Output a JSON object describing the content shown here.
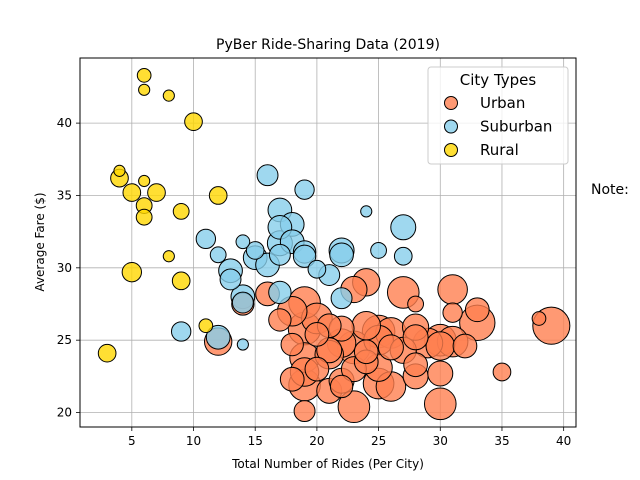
{
  "chart_data": {
    "type": "scatter",
    "title": "PyBer Ride-Sharing Data (2019)",
    "xlabel": "Total Number of Rides (Per City)",
    "ylabel": "Average Fare ($)",
    "xlim": [
      0.8,
      41.0
    ],
    "ylim": [
      19.0,
      44.5
    ],
    "xticks": [
      5,
      10,
      15,
      20,
      25,
      30,
      35,
      40
    ],
    "yticks": [
      20,
      25,
      30,
      35,
      40
    ],
    "grid": true,
    "legend": {
      "title": "City Types",
      "position": "top-right"
    },
    "note": "Note:",
    "series": [
      {
        "name": "Urban",
        "color": "#ff7f50",
        "points": [
          [
            39,
            26.0,
            22
          ],
          [
            33,
            26.2,
            20
          ],
          [
            31,
            28.5,
            14
          ],
          [
            30,
            25.0,
            16
          ],
          [
            27,
            28.3,
            16
          ],
          [
            26,
            25.5,
            15
          ],
          [
            25,
            25.6,
            17
          ],
          [
            25,
            25.0,
            14
          ],
          [
            24,
            26.0,
            13
          ],
          [
            24,
            29.0,
            12
          ],
          [
            23,
            28.5,
            11
          ],
          [
            23,
            24.5,
            17
          ],
          [
            22,
            25.8,
            10
          ],
          [
            22,
            24.8,
            13
          ],
          [
            21,
            26.0,
            9
          ],
          [
            21,
            24.0,
            13
          ],
          [
            20,
            26.5,
            15
          ],
          [
            19,
            27.6,
            16
          ],
          [
            19,
            25.8,
            17
          ],
          [
            18,
            27.0,
            14
          ],
          [
            18,
            24.7,
            8
          ],
          [
            19,
            23.8,
            14
          ],
          [
            19,
            21.9,
            16
          ],
          [
            19,
            22.8,
            13
          ],
          [
            18,
            22.3,
            9
          ],
          [
            19,
            20.1,
            7
          ],
          [
            21,
            21.5,
            10
          ],
          [
            22,
            22.2,
            10
          ],
          [
            22,
            21.8,
            8
          ],
          [
            23,
            20.4,
            16
          ],
          [
            24,
            23.5,
            9
          ],
          [
            25,
            22.0,
            15
          ],
          [
            25,
            23.1,
            12
          ],
          [
            26,
            21.8,
            14
          ],
          [
            26,
            24.5,
            10
          ],
          [
            27,
            24.3,
            11
          ],
          [
            28,
            25.9,
            11
          ],
          [
            28,
            25.2,
            10
          ],
          [
            28,
            23.3,
            9
          ],
          [
            28,
            22.5,
            10
          ],
          [
            29,
            24.8,
            14
          ],
          [
            30,
            24.6,
            13
          ],
          [
            30,
            22.7,
            10
          ],
          [
            30,
            20.6,
            16
          ],
          [
            31,
            24.9,
            15
          ],
          [
            31,
            26.9,
            6
          ],
          [
            33,
            27.1,
            9
          ],
          [
            35,
            22.8,
            5
          ],
          [
            38,
            26.5,
            3
          ],
          [
            28,
            27.5,
            4
          ],
          [
            16,
            28.2,
            9
          ],
          [
            17,
            26.4,
            8
          ],
          [
            14,
            27.5,
            8
          ],
          [
            12,
            24.9,
            12
          ],
          [
            20,
            23.0,
            9
          ],
          [
            21,
            24.3,
            10
          ],
          [
            24,
            24.2,
            9
          ],
          [
            32,
            24.6,
            9
          ],
          [
            23,
            23.0,
            10
          ],
          [
            20,
            25.4,
            9
          ]
        ]
      },
      {
        "name": "Suburban",
        "color": "#87ceeb",
        "points": [
          [
            27,
            32.8,
            10
          ],
          [
            16,
            36.4,
            7
          ],
          [
            19,
            35.4,
            6
          ],
          [
            17,
            34.0,
            9
          ],
          [
            18,
            33.0,
            9
          ],
          [
            17,
            32.8,
            9
          ],
          [
            15,
            31.2,
            5
          ],
          [
            17,
            31.7,
            10
          ],
          [
            18,
            31.8,
            9
          ],
          [
            19,
            31.1,
            8
          ],
          [
            19,
            30.8,
            8
          ],
          [
            17,
            30.9,
            7
          ],
          [
            15,
            30.7,
            9
          ],
          [
            16,
            30.2,
            9
          ],
          [
            13,
            29.8,
            9
          ],
          [
            13,
            29.2,
            7
          ],
          [
            11,
            32.0,
            6
          ],
          [
            12,
            30.9,
            4
          ],
          [
            14,
            31.8,
            3
          ],
          [
            14,
            28.0,
            9
          ],
          [
            14,
            27.6,
            7
          ],
          [
            17,
            28.3,
            8
          ],
          [
            21,
            29.5,
            7
          ],
          [
            22,
            30.9,
            9
          ],
          [
            22,
            31.2,
            10
          ],
          [
            22,
            27.9,
            7
          ],
          [
            20,
            29.9,
            5
          ],
          [
            25,
            31.2,
            4
          ],
          [
            27,
            30.8,
            5
          ],
          [
            24,
            33.9,
            2
          ],
          [
            9,
            25.6,
            6
          ],
          [
            12,
            25.2,
            9
          ],
          [
            14,
            24.7,
            2
          ]
        ]
      },
      {
        "name": "Rural",
        "color": "#ffd700",
        "points": [
          [
            6,
            43.3,
            3
          ],
          [
            6,
            42.3,
            2
          ],
          [
            8,
            41.9,
            2
          ],
          [
            10,
            40.1,
            5
          ],
          [
            4,
            36.7,
            2
          ],
          [
            4,
            36.2,
            5
          ],
          [
            6,
            36.0,
            2
          ],
          [
            5,
            35.2,
            5
          ],
          [
            7,
            35.2,
            5
          ],
          [
            12,
            35.0,
            5
          ],
          [
            6,
            34.3,
            4
          ],
          [
            9,
            33.9,
            4
          ],
          [
            6,
            33.5,
            4
          ],
          [
            8,
            30.8,
            2
          ],
          [
            5,
            29.7,
            6
          ],
          [
            9,
            29.1,
            5
          ],
          [
            11,
            26.0,
            3
          ],
          [
            3,
            24.1,
            5
          ]
        ]
      }
    ]
  }
}
